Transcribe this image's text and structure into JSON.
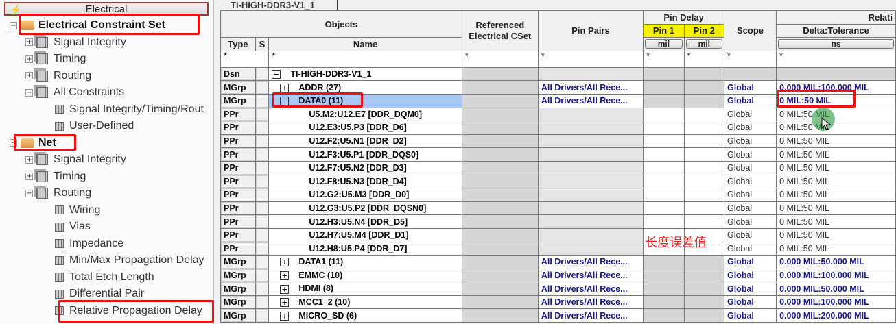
{
  "panel_header": "Electrical",
  "tree": [
    {
      "label": "Electrical Constraint Set",
      "level": 0,
      "bold": true,
      "type": "folder",
      "exp": "−"
    },
    {
      "label": "Signal Integrity",
      "level": 1,
      "type": "grid",
      "exp": "+"
    },
    {
      "label": "Timing",
      "level": 1,
      "type": "grid",
      "exp": "+"
    },
    {
      "label": "Routing",
      "level": 1,
      "type": "grid",
      "exp": "+"
    },
    {
      "label": "All Constraints",
      "level": 1,
      "type": "grid",
      "exp": "−"
    },
    {
      "label": "Signal Integrity/Timing/Rout",
      "level": 2,
      "type": "sheet"
    },
    {
      "label": "User-Defined",
      "level": 2,
      "type": "sheet"
    },
    {
      "label": "Net",
      "level": 0,
      "bold": true,
      "type": "folder",
      "exp": "−"
    },
    {
      "label": "Signal Integrity",
      "level": 1,
      "type": "grid",
      "exp": "+"
    },
    {
      "label": "Timing",
      "level": 1,
      "type": "grid",
      "exp": "+"
    },
    {
      "label": "Routing",
      "level": 1,
      "type": "grid",
      "exp": "−"
    },
    {
      "label": "Wiring",
      "level": 2,
      "type": "sheet"
    },
    {
      "label": "Vias",
      "level": 2,
      "type": "sheet"
    },
    {
      "label": "Impedance",
      "level": 2,
      "type": "sheet"
    },
    {
      "label": "Min/Max Propagation Delay",
      "level": 2,
      "type": "sheet"
    },
    {
      "label": "Total Etch Length",
      "level": 2,
      "type": "sheet"
    },
    {
      "label": "Differential Pair",
      "level": 2,
      "type": "sheet"
    },
    {
      "label": "Relative Propagation Delay",
      "level": 2,
      "type": "sheet"
    }
  ],
  "tab_title": "TI-HIGH-DDR3-V1_1",
  "headers": {
    "objects": "Objects",
    "type": "Type",
    "s": "S",
    "name": "Name",
    "ref_cset": "Referenced Electrical CSet",
    "pin_pairs": "Pin Pairs",
    "pin_delay": "Pin Delay",
    "pin1": "Pin 1",
    "pin2": "Pin 2",
    "scope": "Scope",
    "relative": "Relati",
    "delta_tol": "Delta:Tolerance",
    "unit_mil": "mil",
    "unit_ns": "ns",
    "filter": "*"
  },
  "rows": [
    {
      "type": "Dsn",
      "exp": "−",
      "name": "TI-HIGH-DDR3-V1_1",
      "pin_pairs": "",
      "scope": "",
      "delta": "",
      "kind": "dsn"
    },
    {
      "type": "MGrp",
      "exp": "+",
      "name": "ADDR (27)",
      "pin_pairs": "All Drivers/All Rece...",
      "scope": "Global",
      "delta": "0.000 MIL:100.000 MIL",
      "kind": "mgrp"
    },
    {
      "type": "MGrp",
      "exp": "−",
      "name": "DATA0 (11)",
      "pin_pairs": "All Drivers/All Rece...",
      "scope": "Global",
      "delta": "0 MIL:50 MIL",
      "kind": "mgrp",
      "selected": true
    },
    {
      "type": "PPr",
      "name": "U5.M2:U12.E7 [DDR_DQM0]",
      "pin_pairs": "",
      "scope": "Global",
      "delta": "0 MIL:50 MIL",
      "kind": "ppr"
    },
    {
      "type": "PPr",
      "name": "U12.E3:U5.P3 [DDR_D6]",
      "pin_pairs": "",
      "scope": "Global",
      "delta": "0 MIL:50 MIL",
      "kind": "ppr"
    },
    {
      "type": "PPr",
      "name": "U12.F2:U5.N1 [DDR_D2]",
      "pin_pairs": "",
      "scope": "Global",
      "delta": "0 MIL:50 MIL",
      "kind": "ppr"
    },
    {
      "type": "PPr",
      "name": "U12.F3:U5.P1 [DDR_DQS0]",
      "pin_pairs": "",
      "scope": "Global",
      "delta": "0 MIL:50 MIL",
      "kind": "ppr"
    },
    {
      "type": "PPr",
      "name": "U12.F7:U5.N2 [DDR_D3]",
      "pin_pairs": "",
      "scope": "Global",
      "delta": "0 MIL:50 MIL",
      "kind": "ppr"
    },
    {
      "type": "PPr",
      "name": "U12.F8:U5.N3 [DDR_D4]",
      "pin_pairs": "",
      "scope": "Global",
      "delta": "0 MIL:50 MIL",
      "kind": "ppr"
    },
    {
      "type": "PPr",
      "name": "U12.G2:U5.M3 [DDR_D0]",
      "pin_pairs": "",
      "scope": "Global",
      "delta": "0 MIL:50 MIL",
      "kind": "ppr"
    },
    {
      "type": "PPr",
      "name": "U12.G3:U5.P2 [DDR_DQSN0]",
      "pin_pairs": "",
      "scope": "Global",
      "delta": "0 MIL:50 MIL",
      "kind": "ppr"
    },
    {
      "type": "PPr",
      "name": "U12.H3:U5.N4 [DDR_D5]",
      "pin_pairs": "",
      "scope": "Global",
      "delta": "0 MIL:50 MIL",
      "kind": "ppr"
    },
    {
      "type": "PPr",
      "name": "U12.H7:U5.M4 [DDR_D1]",
      "pin_pairs": "",
      "scope": "Global",
      "delta": "0 MIL:50 MIL",
      "kind": "ppr"
    },
    {
      "type": "PPr",
      "name": "U12.H8:U5.P4 [DDR_D7]",
      "pin_pairs": "",
      "scope": "Global",
      "delta": "0 MIL:50 MIL",
      "kind": "ppr"
    },
    {
      "type": "MGrp",
      "exp": "+",
      "name": "DATA1 (11)",
      "pin_pairs": "All Drivers/All Rece...",
      "scope": "Global",
      "delta": "0.000 MIL:50.000 MIL",
      "kind": "mgrp"
    },
    {
      "type": "MGrp",
      "exp": "+",
      "name": "EMMC (10)",
      "pin_pairs": "All Drivers/All Rece...",
      "scope": "Global",
      "delta": "0.000 MIL:100.000 MIL",
      "kind": "mgrp"
    },
    {
      "type": "MGrp",
      "exp": "+",
      "name": "HDMI (8)",
      "pin_pairs": "All Drivers/All Rece...",
      "scope": "Global",
      "delta": "0.000 MIL:50.000 MIL",
      "kind": "mgrp"
    },
    {
      "type": "MGrp",
      "exp": "+",
      "name": "MCC1_2 (10)",
      "pin_pairs": "All Drivers/All Rece...",
      "scope": "Global",
      "delta": "0.000 MIL:100.000 MIL",
      "kind": "mgrp"
    },
    {
      "type": "MGrp",
      "exp": "+",
      "name": "MICRO_SD (6)",
      "pin_pairs": "All Drivers/All Rece...",
      "scope": "Global",
      "delta": "0.000 MIL:200.000 MIL",
      "kind": "mgrp"
    }
  ],
  "annotation": "长度误差值",
  "colors": {
    "highlight": "#e11111",
    "selection": "#a8c8f8",
    "pin_header": "#f5f000",
    "value_text": "#1a1a8c"
  }
}
